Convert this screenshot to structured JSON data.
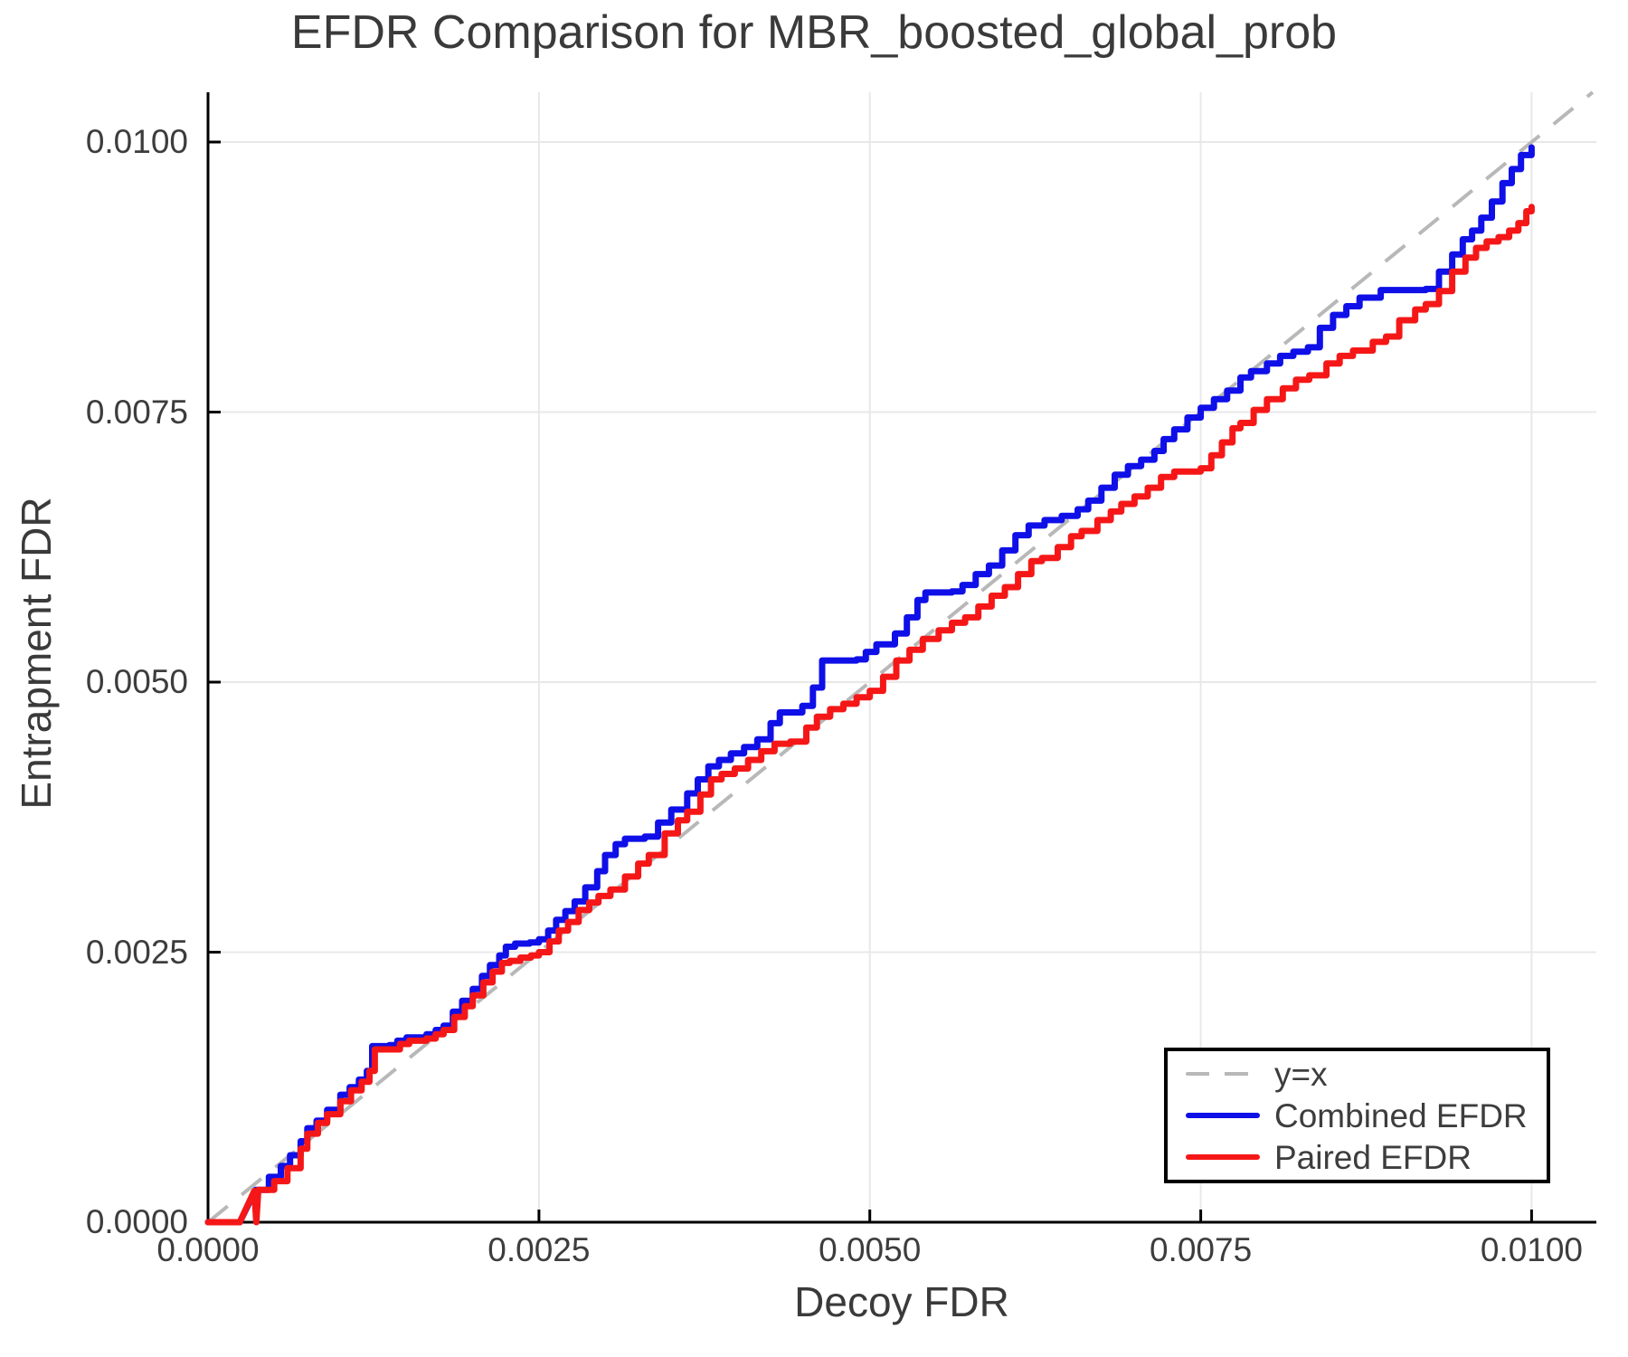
{
  "chart_data": {
    "type": "line",
    "title": "EFDR Comparison for MBR_boosted_global_prob",
    "xlabel": "Decoy FDR",
    "ylabel": "Entrapment FDR",
    "xlim": [
      0,
      0.010489
    ],
    "ylim": [
      0,
      0.010461
    ],
    "grid": true,
    "legend_position": "lower right",
    "x_ticks": {
      "values": [
        0,
        0.0025,
        0.005,
        0.0075,
        0.01
      ],
      "labels": [
        "0.0000",
        "0.0025",
        "0.0050",
        "0.0075",
        "0.0100"
      ]
    },
    "y_ticks": {
      "values": [
        0,
        0.0025,
        0.005,
        0.0075,
        0.01
      ],
      "labels": [
        "0.0000",
        "0.0025",
        "0.0050",
        "0.0075",
        "0.0100"
      ]
    },
    "identity_line": {
      "label": "y=x",
      "color": "#b8b8b8",
      "dashed": true,
      "from": [
        0,
        0
      ],
      "to": [
        0.010461,
        0.010461
      ]
    },
    "series": [
      {
        "name": "Combined EFDR",
        "color": "#0f0fe8",
        "segments": [
          {
            "mode": "line",
            "points": [
              [
                0,
                0
              ],
              [
                0.00024,
                0
              ],
              [
                0.00036,
                0.0003
              ]
            ]
          },
          {
            "mode": "steps",
            "points": [
              [
                0.00046,
                0.00042
              ],
              [
                0.00055,
                0.00052
              ],
              [
                0.00062,
                0.00062
              ],
              [
                0.0007,
                0.00075
              ],
              [
                0.00075,
                0.00087
              ],
              [
                0.00082,
                0.00094
              ],
              [
                0.0009,
                0.00104
              ],
              [
                0.001,
                0.00118
              ],
              [
                0.00107,
                0.00125
              ],
              [
                0.00114,
                0.00132
              ],
              [
                0.0012,
                0.0014
              ],
              [
                0.00124,
                0.00163
              ],
              [
                0.00137,
                0.00164
              ],
              [
                0.00143,
                0.00168
              ],
              [
                0.0015,
                0.00171
              ],
              [
                0.00165,
                0.00174
              ],
              [
                0.00172,
                0.00178
              ],
              [
                0.00178,
                0.00182
              ],
              [
                0.00185,
                0.00195
              ],
              [
                0.00192,
                0.00205
              ],
              [
                0.002,
                0.00216
              ],
              [
                0.00207,
                0.00228
              ],
              [
                0.00213,
                0.00238
              ],
              [
                0.0022,
                0.00247
              ],
              [
                0.00225,
                0.00255
              ],
              [
                0.00232,
                0.00258
              ],
              [
                0.00243,
                0.00259
              ],
              [
                0.0025,
                0.00262
              ],
              [
                0.00257,
                0.0027
              ],
              [
                0.00263,
                0.0028
              ],
              [
                0.0027,
                0.00288
              ],
              [
                0.00277,
                0.00297
              ],
              [
                0.00285,
                0.0031
              ],
              [
                0.00294,
                0.00325
              ],
              [
                0.003,
                0.0034
              ],
              [
                0.00308,
                0.0035
              ],
              [
                0.00315,
                0.00355
              ],
              [
                0.0033,
                0.00357
              ],
              [
                0.0034,
                0.0037
              ],
              [
                0.0035,
                0.00382
              ],
              [
                0.00362,
                0.00397
              ],
              [
                0.0037,
                0.0041
              ],
              [
                0.00378,
                0.00422
              ],
              [
                0.00386,
                0.00428
              ],
              [
                0.00395,
                0.00434
              ],
              [
                0.00405,
                0.0044
              ],
              [
                0.00415,
                0.00447
              ],
              [
                0.00425,
                0.00462
              ],
              [
                0.00432,
                0.00472
              ],
              [
                0.00449,
                0.00478
              ],
              [
                0.00457,
                0.00495
              ],
              [
                0.00464,
                0.0052
              ],
              [
                0.0049,
                0.00521
              ],
              [
                0.00497,
                0.00528
              ],
              [
                0.00505,
                0.00535
              ],
              [
                0.00519,
                0.00545
              ],
              [
                0.00528,
                0.0056
              ],
              [
                0.00536,
                0.00576
              ],
              [
                0.00542,
                0.00583
              ],
              [
                0.00562,
                0.00584
              ],
              [
                0.0057,
                0.0059
              ],
              [
                0.0058,
                0.006
              ],
              [
                0.0059,
                0.00608
              ],
              [
                0.006,
                0.00622
              ],
              [
                0.0061,
                0.00636
              ],
              [
                0.0062,
                0.00645
              ],
              [
                0.00632,
                0.0065
              ],
              [
                0.00645,
                0.00654
              ],
              [
                0.00657,
                0.0066
              ],
              [
                0.00665,
                0.00668
              ],
              [
                0.00675,
                0.0068
              ],
              [
                0.00685,
                0.00692
              ],
              [
                0.00695,
                0.007
              ],
              [
                0.00705,
                0.00706
              ],
              [
                0.00715,
                0.00714
              ],
              [
                0.00722,
                0.00725
              ],
              [
                0.0073,
                0.00734
              ],
              [
                0.0074,
                0.00745
              ],
              [
                0.0075,
                0.00754
              ],
              [
                0.0076,
                0.00762
              ],
              [
                0.0077,
                0.0077
              ],
              [
                0.0078,
                0.00782
              ],
              [
                0.00788,
                0.00788
              ],
              [
                0.008,
                0.00795
              ],
              [
                0.0081,
                0.00802
              ],
              [
                0.0082,
                0.00806
              ],
              [
                0.00831,
                0.0081
              ],
              [
                0.0084,
                0.00828
              ],
              [
                0.0085,
                0.0084
              ],
              [
                0.0086,
                0.00848
              ],
              [
                0.0087,
                0.00856
              ],
              [
                0.00886,
                0.00863
              ],
              [
                0.0092,
                0.00864
              ],
              [
                0.0093,
                0.0088
              ],
              [
                0.0094,
                0.00896
              ],
              [
                0.00948,
                0.0091
              ],
              [
                0.00955,
                0.00918
              ],
              [
                0.00962,
                0.0093
              ],
              [
                0.0097,
                0.00945
              ],
              [
                0.00978,
                0.00962
              ],
              [
                0.00985,
                0.00975
              ],
              [
                0.00992,
                0.00988
              ],
              [
                0.01,
                0.00995
              ]
            ]
          }
        ]
      },
      {
        "name": "Paired EFDR",
        "color": "#f51717",
        "segments": [
          {
            "mode": "line",
            "points": [
              [
                0,
                0
              ],
              [
                0.00024,
                0
              ],
              [
                0.00035,
                0.00029
              ],
              [
                0.000365,
                0
              ],
              [
                0.00038,
                0.0003
              ]
            ]
          },
          {
            "mode": "steps",
            "points": [
              [
                0.0005,
                0.00038
              ],
              [
                0.0006,
                0.0005
              ],
              [
                0.0007,
                0.00068
              ],
              [
                0.00075,
                0.00082
              ],
              [
                0.00083,
                0.00092
              ],
              [
                0.0009,
                0.001
              ],
              [
                0.001,
                0.00112
              ],
              [
                0.00108,
                0.00122
              ],
              [
                0.00116,
                0.0013
              ],
              [
                0.00122,
                0.0014
              ],
              [
                0.00126,
                0.0016
              ],
              [
                0.00137,
                0.0016
              ],
              [
                0.00145,
                0.00165
              ],
              [
                0.00152,
                0.00168
              ],
              [
                0.00165,
                0.0017
              ],
              [
                0.00172,
                0.00174
              ],
              [
                0.00178,
                0.00178
              ],
              [
                0.00186,
                0.0019
              ],
              [
                0.00194,
                0.002
              ],
              [
                0.002,
                0.0021
              ],
              [
                0.00208,
                0.00222
              ],
              [
                0.00215,
                0.00232
              ],
              [
                0.00222,
                0.0024
              ],
              [
                0.00228,
                0.00242
              ],
              [
                0.00236,
                0.00245
              ],
              [
                0.00244,
                0.00247
              ],
              [
                0.0025,
                0.0025
              ],
              [
                0.00258,
                0.0026
              ],
              [
                0.00265,
                0.0027
              ],
              [
                0.00272,
                0.00278
              ],
              [
                0.0028,
                0.00289
              ],
              [
                0.00288,
                0.00296
              ],
              [
                0.00295,
                0.00302
              ],
              [
                0.00304,
                0.00308
              ],
              [
                0.00315,
                0.0032
              ],
              [
                0.00325,
                0.00332
              ],
              [
                0.00333,
                0.0034
              ],
              [
                0.00345,
                0.0036
              ],
              [
                0.00355,
                0.00372
              ],
              [
                0.00362,
                0.0038
              ],
              [
                0.00372,
                0.00396
              ],
              [
                0.0038,
                0.0041
              ],
              [
                0.00388,
                0.00415
              ],
              [
                0.00398,
                0.0042
              ],
              [
                0.00408,
                0.00428
              ],
              [
                0.00418,
                0.00436
              ],
              [
                0.00428,
                0.00443
              ],
              [
                0.0044,
                0.00445
              ],
              [
                0.00452,
                0.00458
              ],
              [
                0.0046,
                0.00468
              ],
              [
                0.0047,
                0.00475
              ],
              [
                0.0048,
                0.0048
              ],
              [
                0.0049,
                0.00486
              ],
              [
                0.005,
                0.00492
              ],
              [
                0.0051,
                0.00505
              ],
              [
                0.0052,
                0.0052
              ],
              [
                0.0053,
                0.0053
              ],
              [
                0.0054,
                0.0054
              ],
              [
                0.00552,
                0.00548
              ],
              [
                0.00562,
                0.00555
              ],
              [
                0.00572,
                0.0056
              ],
              [
                0.00582,
                0.0057
              ],
              [
                0.00592,
                0.0058
              ],
              [
                0.00602,
                0.00588
              ],
              [
                0.00612,
                0.006
              ],
              [
                0.00622,
                0.00612
              ],
              [
                0.0063,
                0.00615
              ],
              [
                0.00642,
                0.00625
              ],
              [
                0.00652,
                0.00635
              ],
              [
                0.0066,
                0.0064
              ],
              [
                0.00672,
                0.0065
              ],
              [
                0.00682,
                0.00658
              ],
              [
                0.0069,
                0.00665
              ],
              [
                0.007,
                0.00672
              ],
              [
                0.0071,
                0.0068
              ],
              [
                0.0072,
                0.0069
              ],
              [
                0.0073,
                0.00695
              ],
              [
                0.0075,
                0.00698
              ],
              [
                0.00758,
                0.0071
              ],
              [
                0.00766,
                0.00722
              ],
              [
                0.00774,
                0.00735
              ],
              [
                0.0078,
                0.0074
              ],
              [
                0.0079,
                0.00752
              ],
              [
                0.008,
                0.00762
              ],
              [
                0.00812,
                0.00772
              ],
              [
                0.00822,
                0.0078
              ],
              [
                0.00832,
                0.00784
              ],
              [
                0.00845,
                0.00795
              ],
              [
                0.00855,
                0.00802
              ],
              [
                0.00865,
                0.00807
              ],
              [
                0.0088,
                0.00815
              ],
              [
                0.0089,
                0.0082
              ],
              [
                0.009,
                0.00835
              ],
              [
                0.00912,
                0.00845
              ],
              [
                0.0092,
                0.0085
              ],
              [
                0.0093,
                0.00862
              ],
              [
                0.0094,
                0.0088
              ],
              [
                0.0095,
                0.00893
              ],
              [
                0.00958,
                0.00902
              ],
              [
                0.00966,
                0.00908
              ],
              [
                0.00975,
                0.00912
              ],
              [
                0.00983,
                0.00918
              ],
              [
                0.0099,
                0.00925
              ],
              [
                0.00996,
                0.00936
              ],
              [
                0.01,
                0.0094
              ]
            ]
          }
        ]
      }
    ],
    "style": {
      "grid_color": "#e8e8e8",
      "axis_color": "#000000",
      "text_color": "#3d3d3d",
      "series_line_width": 7,
      "identity_dash": "28,20"
    }
  }
}
